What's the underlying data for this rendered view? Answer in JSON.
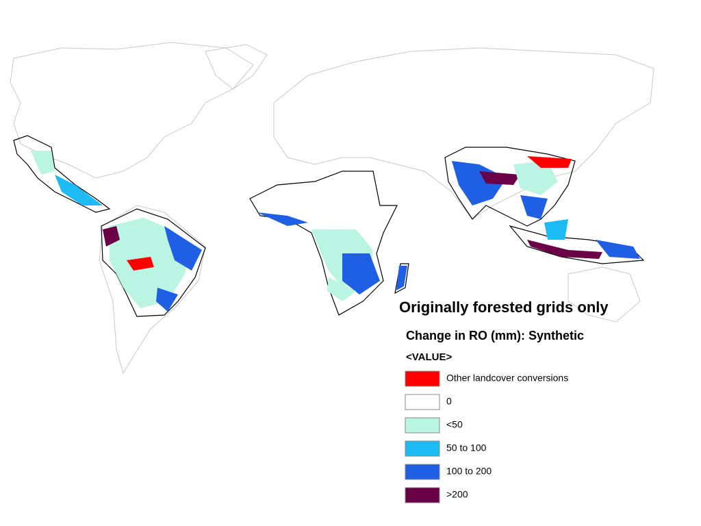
{
  "map": {
    "title": "Originally forested grids only",
    "legend": {
      "title": "Change in RO (mm): Synthetic",
      "field": "<VALUE>",
      "items": [
        {
          "label": "Other landcover conversions",
          "color": "#ff0000"
        },
        {
          "label": "0",
          "color": "#ffffff"
        },
        {
          "label": "<50",
          "color": "#b9f5e2"
        },
        {
          "label": "50 to 100",
          "color": "#1ebaf5"
        },
        {
          "label": "100 to 200",
          "color": "#1e5fe3"
        },
        {
          "label": ">200",
          "color": "#6a0046"
        }
      ]
    }
  }
}
